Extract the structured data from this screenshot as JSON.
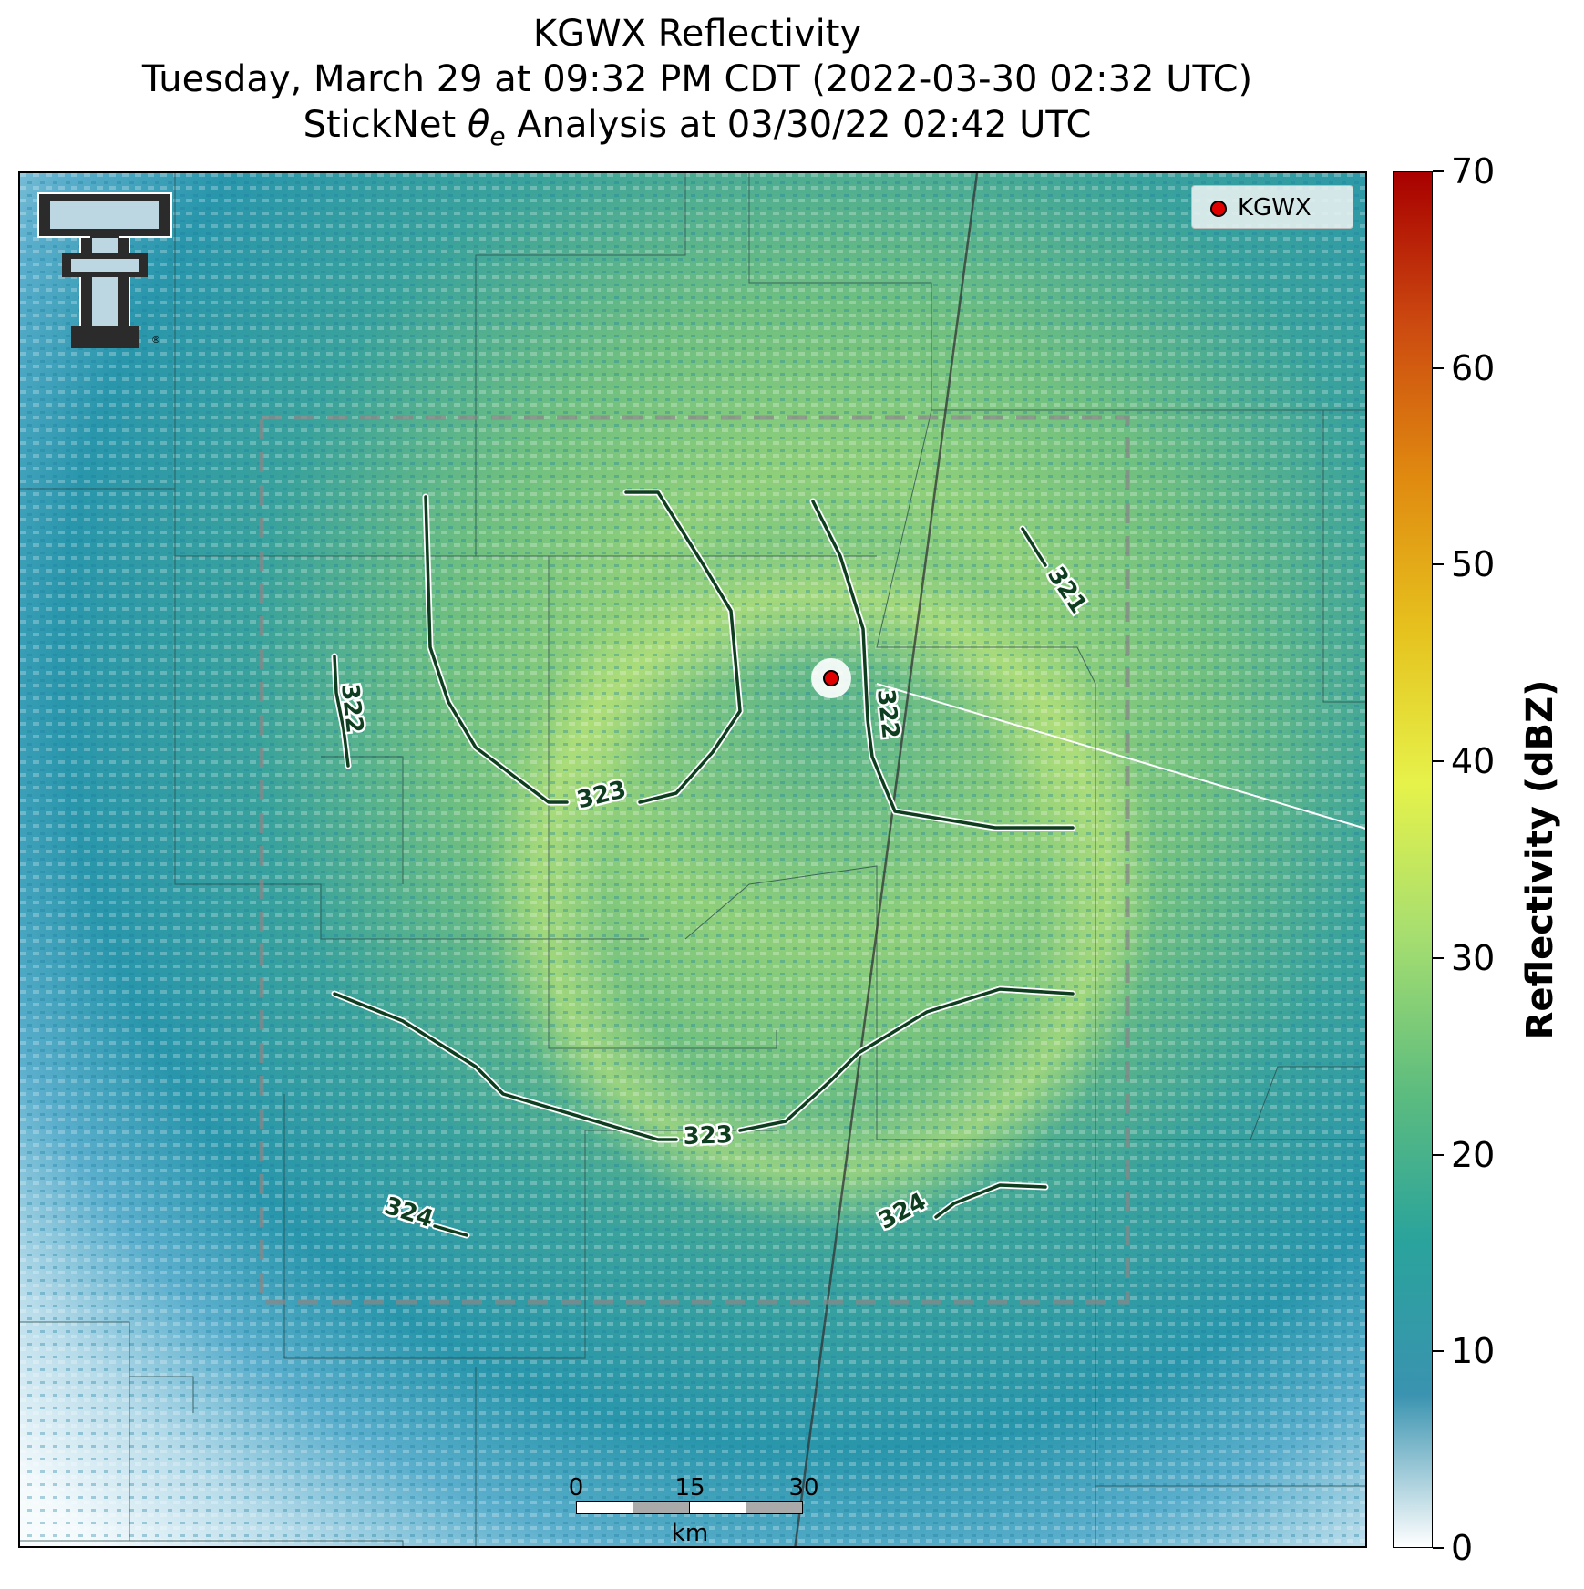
{
  "title": {
    "line1": "KGWX Reflectivity",
    "line2": "Tuesday, March 29 at 09:32 PM CDT (2022-03-30 02:32 UTC)",
    "line3_prefix": "StickNet ",
    "line3_symbol": "θ",
    "line3_subscript": "e",
    "line3_suffix": " Analysis at 03/30/22 02:42 UTC"
  },
  "legend": {
    "label": "KGWX",
    "marker_color": "#e00000"
  },
  "logo": {
    "icon": "double-t-logo-icon",
    "text": "®"
  },
  "colorbar": {
    "label": "Reflectivity (dBZ)",
    "ticks": [
      "0",
      "10",
      "20",
      "30",
      "40",
      "50",
      "60",
      "70"
    ],
    "min": 0,
    "max": 70,
    "colors": [
      "#ffffff",
      "#3a93b0",
      "#2aa39c",
      "#5ebd7e",
      "#a6de70",
      "#e6f24a",
      "#e6c21e",
      "#e08a10",
      "#cc4a10",
      "#a80000"
    ]
  },
  "scale_bar": {
    "labels": [
      "0",
      "15",
      "30"
    ],
    "unit": "km"
  },
  "contours": {
    "color": "#0f3d1f",
    "labels": [
      "322",
      "323",
      "322",
      "321",
      "323",
      "324",
      "324"
    ]
  }
}
